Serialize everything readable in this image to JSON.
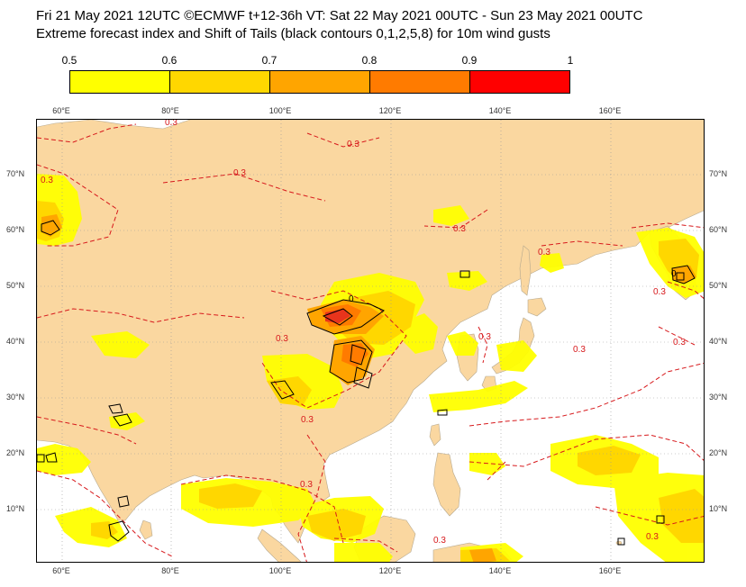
{
  "header": {
    "line1": "Fri 21 May 2021 12UTC ©ECMWF t+12-36h  VT: Sat 22 May 2021 00UTC - Sun 23 May 2021 00UTC",
    "line2": "Extreme forecast index and Shift of Tails (black contours 0,1,2,5,8) for 10m wind gusts"
  },
  "colorbar": {
    "ticks": [
      "0.5",
      "0.6",
      "0.7",
      "0.8",
      "0.9",
      "1"
    ],
    "colors": [
      "#ffff00",
      "#ffd700",
      "#ffa500",
      "#ff7b00",
      "#ff0000"
    ]
  },
  "map": {
    "land_color": "#fad7a0",
    "sea_color": "#ffffff",
    "lon_labels": [
      "60°E",
      "80°E",
      "100°E",
      "120°E",
      "140°E",
      "160°E"
    ],
    "lat_labels": [
      "70°N",
      "60°N",
      "50°N",
      "40°N",
      "30°N",
      "20°N",
      "10°N"
    ],
    "contour_labels": [
      "0.3",
      "0.3",
      "0.3",
      "0.3",
      "0.3",
      "0.3",
      "0.3",
      "0.3",
      "0.3",
      "0.3",
      "0.3",
      "0.3",
      "0.3",
      "0.3",
      "0.3"
    ],
    "sot_labels": [
      "0",
      "0"
    ]
  }
}
